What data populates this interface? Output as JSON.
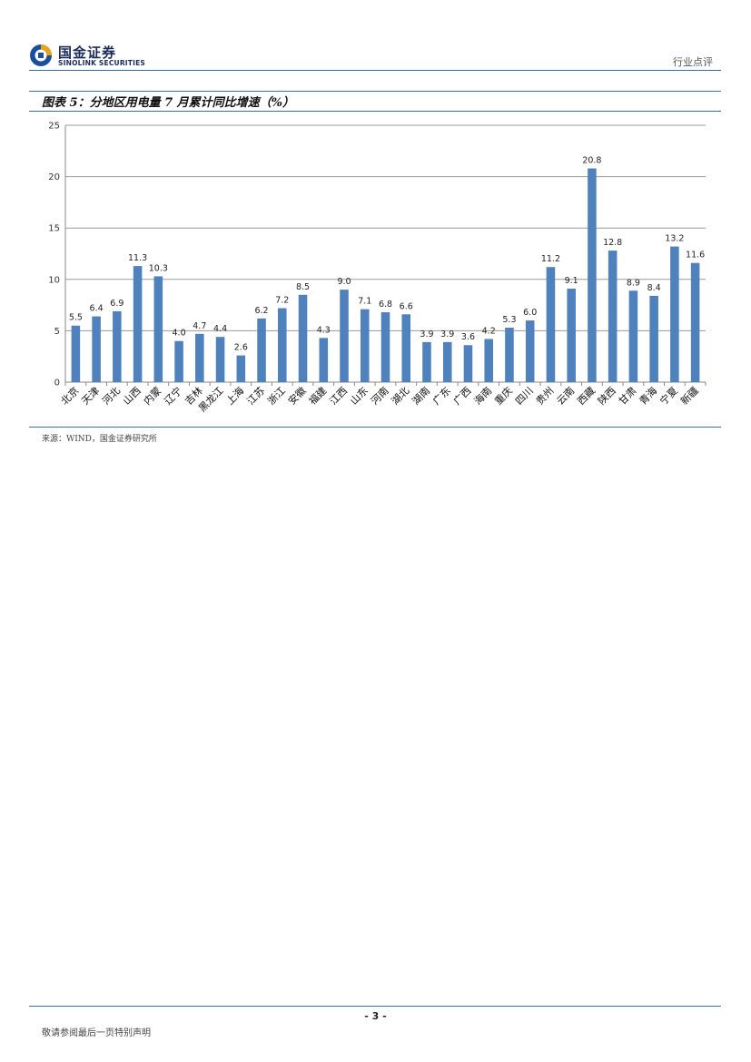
{
  "header": {
    "logo_cn": "国金证券",
    "logo_en": "SINOLINK SECURITIES",
    "report_type": "行业点评"
  },
  "figure": {
    "title": "图表 5：分地区用电量 7 月累计同比增速（%）",
    "source": "来源：WIND，国金证券研究所"
  },
  "chart_data": {
    "type": "bar",
    "categories": [
      "北京",
      "天津",
      "河北",
      "山西",
      "内蒙",
      "辽宁",
      "吉林",
      "黑龙江",
      "上海",
      "江苏",
      "浙江",
      "安徽",
      "福建",
      "江西",
      "山东",
      "河南",
      "湖北",
      "湖南",
      "广东",
      "广西",
      "海南",
      "重庆",
      "四川",
      "贵州",
      "云南",
      "西藏",
      "陕西",
      "甘肃",
      "青海",
      "宁夏",
      "新疆"
    ],
    "values": [
      5.5,
      6.4,
      6.9,
      11.3,
      10.3,
      4.0,
      4.7,
      4.4,
      2.6,
      6.2,
      7.2,
      8.5,
      4.3,
      9.0,
      7.1,
      6.8,
      6.6,
      3.9,
      3.9,
      3.6,
      4.2,
      5.3,
      6.0,
      11.2,
      9.1,
      20.8,
      12.8,
      8.9,
      8.4,
      13.2,
      11.6
    ],
    "value_labels": [
      "5.5",
      "6.4",
      "6.9",
      "11.3",
      "10.3",
      "4.0",
      "4.7",
      "4.4",
      "2.6",
      "6.2",
      "7.2",
      "8.5",
      "4.3",
      "9.0",
      "7.1",
      "6.8",
      "6.6",
      "3.9",
      "3.9",
      "3.6",
      "4.2",
      "5.3",
      "6.0",
      "11.2",
      "9.1",
      "20.8",
      "12.8",
      "8.9",
      "8.4",
      "13.2",
      "11.6"
    ],
    "ylim": [
      0,
      25
    ],
    "yticks": [
      "0",
      "5",
      "10",
      "15",
      "20",
      "25"
    ],
    "grid": true,
    "bar_color": "#4f81bd",
    "xlabel": "",
    "ylabel": ""
  },
  "footer": {
    "page_number": "- 3 -",
    "disclaimer": "敬请参阅最后一页特别声明"
  },
  "colors": {
    "rule": "#3b6ea8",
    "grid": "#9a9a9a"
  }
}
